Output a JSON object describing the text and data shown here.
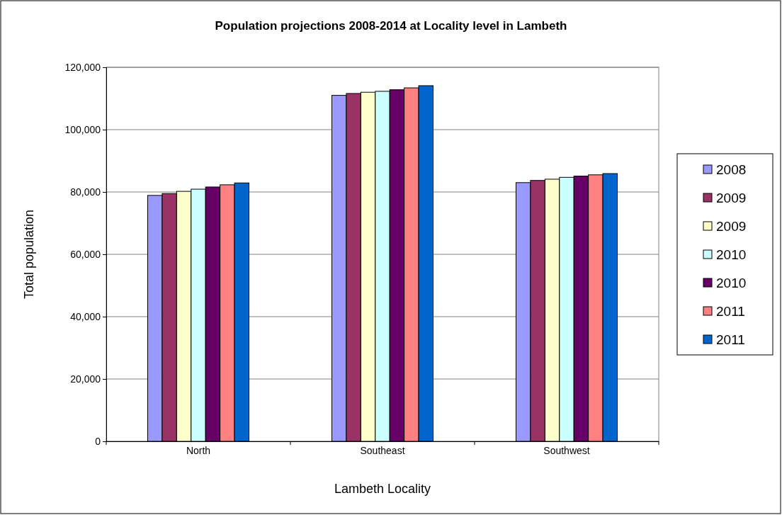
{
  "chart_data": {
    "type": "bar",
    "title": "Population projections 2008-2014 at Locality level in Lambeth",
    "xlabel": "Lambeth Locality",
    "ylabel": "Total population",
    "categories": [
      "North",
      "Southeast",
      "Southwest"
    ],
    "series": [
      {
        "name": "2008",
        "color": "#9999ff",
        "values": [
          78900,
          111000,
          83000
        ]
      },
      {
        "name": "2009",
        "color": "#993366",
        "values": [
          79500,
          111600,
          83700
        ]
      },
      {
        "name": "2009",
        "color": "#ffffcc",
        "values": [
          80200,
          112000,
          84100
        ]
      },
      {
        "name": "2010",
        "color": "#ccffff",
        "values": [
          80900,
          112300,
          84700
        ]
      },
      {
        "name": "2010",
        "color": "#660066",
        "values": [
          81600,
          112800,
          85100
        ]
      },
      {
        "name": "2011",
        "color": "#ff8080",
        "values": [
          82300,
          113400,
          85500
        ]
      },
      {
        "name": "2011",
        "color": "#0066cc",
        "values": [
          82900,
          114100,
          85900
        ]
      }
    ],
    "ylim": [
      0,
      120000
    ],
    "yticks": [
      {
        "value": 0,
        "label": "0"
      },
      {
        "value": 20000,
        "label": "20,000"
      },
      {
        "value": 40000,
        "label": "40,000"
      },
      {
        "value": 60000,
        "label": "60,000"
      },
      {
        "value": 80000,
        "label": "80,000"
      },
      {
        "value": 100000,
        "label": "100,000"
      },
      {
        "value": 120000,
        "label": "120,000"
      }
    ],
    "grid": "y",
    "legend": "right"
  }
}
